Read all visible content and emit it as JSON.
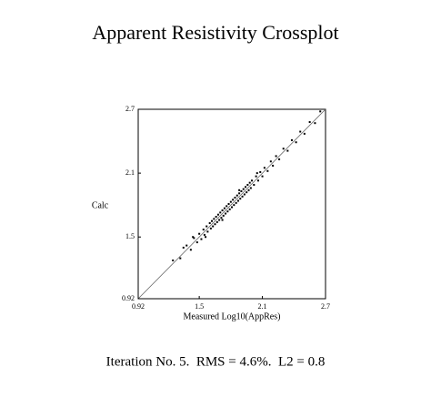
{
  "chart_data": {
    "type": "scatter",
    "title": "Apparent Resistivity Crossplot",
    "x_label": "Measured Log10(AppRes)",
    "y_label": "Calc",
    "footer": "Iteration No. 5.  RMS = 4.6%.  L2 = 0.8",
    "color": "#000000",
    "xlim": [
      0.92,
      2.7
    ],
    "ylim": [
      0.92,
      2.7
    ],
    "xticks": [
      0.92,
      1.5,
      2.1,
      2.7
    ],
    "yticks": [
      0.92,
      1.5,
      2.1,
      2.7
    ],
    "x": [
      1.25,
      1.32,
      1.38,
      1.42,
      1.45,
      1.48,
      1.5,
      1.52,
      1.54,
      1.55,
      1.57,
      1.58,
      1.6,
      1.61,
      1.62,
      1.63,
      1.64,
      1.65,
      1.66,
      1.67,
      1.68,
      1.69,
      1.7,
      1.71,
      1.72,
      1.73,
      1.74,
      1.75,
      1.76,
      1.77,
      1.78,
      1.79,
      1.8,
      1.81,
      1.82,
      1.83,
      1.84,
      1.85,
      1.86,
      1.87,
      1.88,
      1.89,
      1.9,
      1.91,
      1.92,
      1.93,
      1.94,
      1.95,
      1.96,
      1.97,
      1.98,
      1.99,
      2.0,
      2.02,
      2.04,
      2.06,
      2.08,
      2.1,
      2.12,
      2.15,
      2.18,
      2.2,
      2.23,
      2.26,
      2.3,
      2.34,
      2.38,
      2.42,
      2.46,
      2.5,
      2.55,
      2.6,
      2.65,
      1.35,
      1.44,
      1.56,
      1.72,
      1.88,
      2.05
    ],
    "values": [
      1.28,
      1.3,
      1.42,
      1.38,
      1.49,
      1.45,
      1.53,
      1.48,
      1.57,
      1.52,
      1.6,
      1.55,
      1.63,
      1.58,
      1.65,
      1.6,
      1.67,
      1.62,
      1.69,
      1.64,
      1.71,
      1.66,
      1.73,
      1.68,
      1.75,
      1.7,
      1.77,
      1.72,
      1.79,
      1.74,
      1.81,
      1.76,
      1.83,
      1.78,
      1.85,
      1.8,
      1.87,
      1.82,
      1.89,
      1.84,
      1.91,
      1.86,
      1.93,
      1.88,
      1.95,
      1.9,
      1.97,
      1.92,
      1.99,
      1.94,
      2.01,
      1.96,
      2.03,
      1.99,
      2.07,
      2.03,
      2.11,
      2.07,
      2.15,
      2.12,
      2.21,
      2.17,
      2.26,
      2.23,
      2.33,
      2.31,
      2.41,
      2.39,
      2.49,
      2.47,
      2.58,
      2.57,
      2.68,
      1.4,
      1.5,
      1.5,
      1.66,
      1.94,
      2.1
    ]
  }
}
